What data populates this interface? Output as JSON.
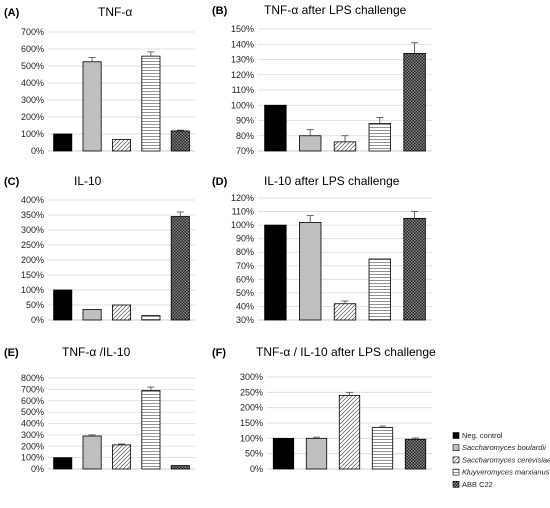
{
  "series_styles": [
    {
      "name": "Neg. control",
      "fill": "#000000",
      "pattern": "solid"
    },
    {
      "name": "Saccharomyces boulardii",
      "fill": "#bfbfbf",
      "pattern": "solid"
    },
    {
      "name": "Saccharomyces cerevisiae",
      "fill": "#ffffff",
      "pattern": "diagonal"
    },
    {
      "name": "Kluyveromyces marxianus",
      "fill": "#ffffff",
      "pattern": "horizontal"
    },
    {
      "name": "ABB C22",
      "fill": "#333333",
      "pattern": "checker"
    }
  ],
  "legend": {
    "placement": "right",
    "entries": [
      {
        "label": "Neg. control",
        "italic": false
      },
      {
        "label": "Saccharomyces boulardii",
        "italic": true
      },
      {
        "label": "Saccharomyces cerevisiae",
        "italic": true
      },
      {
        "label": "Kluyveromyces marxianus",
        "italic": true
      },
      {
        "label": "ABB C22",
        "italic": false
      }
    ]
  },
  "chart_data": [
    {
      "panel": "(A)",
      "title": "TNF-α",
      "type": "bar",
      "categories": [
        "Neg. control",
        "Saccharomyces boulardii",
        "Saccharomyces cerevisiae",
        "Kluyveromyces marxianus",
        "ABB C22"
      ],
      "values": [
        100,
        525,
        68,
        558,
        118
      ],
      "errors": [
        0,
        25,
        0,
        25,
        5
      ],
      "ylim": [
        0,
        700
      ],
      "ystep": 100,
      "grid": true
    },
    {
      "panel": "(B)",
      "title": "TNF-α after LPS challenge",
      "type": "bar",
      "categories": [
        "Neg. control",
        "Saccharomyces boulardii",
        "Saccharomyces cerevisiae",
        "Kluyveromyces marxianus",
        "ABB C22"
      ],
      "values": [
        100,
        80,
        76,
        88,
        134
      ],
      "errors": [
        0,
        4,
        4,
        4,
        7
      ],
      "ylim": [
        70,
        150
      ],
      "ystep": 10,
      "grid": true
    },
    {
      "panel": "(C)",
      "title": "IL-10",
      "type": "bar",
      "categories": [
        "Neg. control",
        "Saccharomyces boulardii",
        "Saccharomyces cerevisiae",
        "Kluyveromyces marxianus",
        "ABB C22"
      ],
      "values": [
        100,
        35,
        50,
        15,
        345
      ],
      "errors": [
        0,
        0,
        0,
        0,
        15
      ],
      "ylim": [
        0,
        400
      ],
      "ystep": 50,
      "grid": true
    },
    {
      "panel": "(D)",
      "title": "IL-10 after LPS challenge",
      "type": "bar",
      "categories": [
        "Neg. control",
        "Saccharomyces boulardii",
        "Saccharomyces cerevisiae",
        "Kluyveromyces marxianus",
        "ABB C22"
      ],
      "values": [
        100,
        102,
        42,
        75,
        105
      ],
      "errors": [
        0,
        5,
        2,
        0,
        5
      ],
      "ylim": [
        30,
        120
      ],
      "ystep": 10,
      "grid": true
    },
    {
      "panel": "(E)",
      "title": "TNF-α /IL-10",
      "type": "bar",
      "categories": [
        "Neg. control",
        "Saccharomyces boulardii",
        "Saccharomyces cerevisiae",
        "Kluyveromyces marxianus",
        "ABB C22"
      ],
      "values": [
        100,
        290,
        212,
        690,
        30
      ],
      "errors": [
        0,
        10,
        8,
        30,
        0
      ],
      "ylim": [
        0,
        800
      ],
      "ystep": 100,
      "grid": true
    },
    {
      "panel": "(F)",
      "title": "TNF-α / IL-10 after LPS challenge",
      "type": "bar",
      "categories": [
        "Neg. control",
        "Saccharomyces boulardii",
        "Saccharomyces cerevisiae",
        "Kluyveromyces marxianus",
        "ABB C22"
      ],
      "values": [
        100,
        100,
        240,
        135,
        97
      ],
      "errors": [
        0,
        4,
        10,
        5,
        4
      ],
      "ylim": [
        0,
        300
      ],
      "ystep": 50,
      "grid": true
    }
  ]
}
